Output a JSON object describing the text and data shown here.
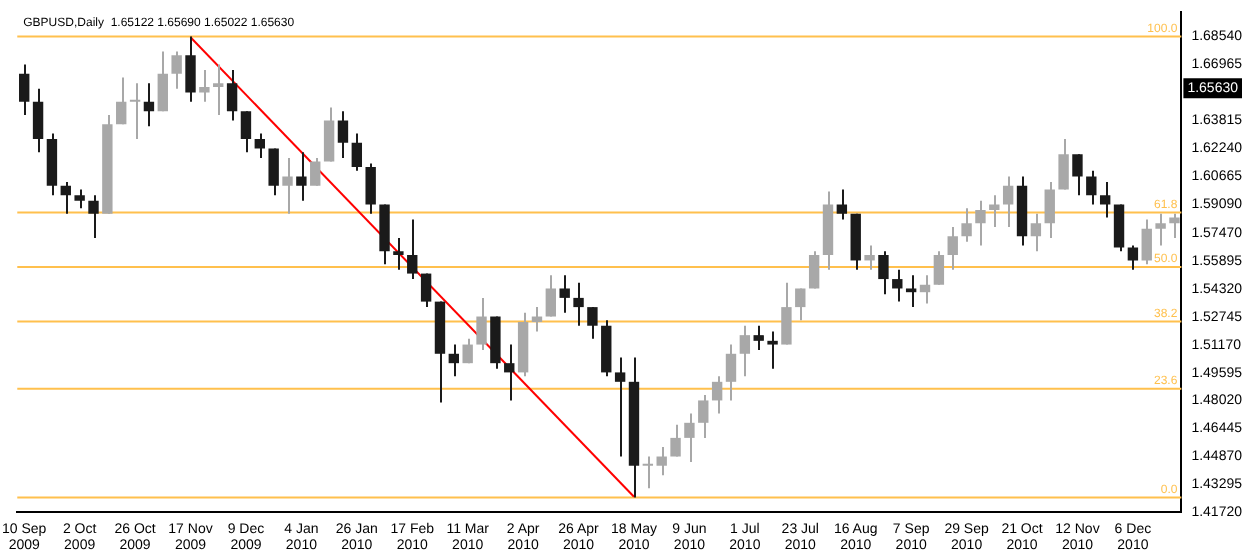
{
  "chart_data": {
    "type": "candlestick",
    "title": "GBPUSD,Daily  1.65122 1.65690 1.65022 1.65630",
    "categories": [
      "10 Sep 2009",
      null,
      null,
      null,
      "2 Oct 2009",
      null,
      null,
      null,
      "26 Oct 2009",
      null,
      null,
      null,
      "17 Nov 2009",
      null,
      null,
      null,
      "9 Dec 2009",
      null,
      null,
      null,
      "4 Jan 2010",
      null,
      null,
      null,
      "26 Jan 2010",
      null,
      null,
      null,
      "17 Feb 2010",
      null,
      null,
      null,
      "11 Mar 2010",
      null,
      null,
      null,
      "2 Apr 2010",
      null,
      null,
      null,
      "26 Apr 2010",
      null,
      null,
      null,
      "18 May 2010",
      null,
      null,
      null,
      "9 Jun 2010",
      null,
      null,
      null,
      "1 Jul 2010",
      null,
      null,
      null,
      "23 Jul 2010",
      null,
      null,
      null,
      "16 Aug 2010",
      null,
      null,
      null,
      "7 Sep 2010",
      null,
      null,
      null,
      "29 Sep 2010",
      null,
      null,
      null,
      "21 Oct 2010",
      null,
      null,
      null,
      "12 Nov 2010",
      null,
      null,
      null,
      "6 Dec 2010",
      null,
      null,
      null
    ],
    "ohlc": [
      [
        1.6644,
        1.6696,
        1.6412,
        1.6486
      ],
      [
        1.6486,
        1.656,
        1.6202,
        1.6276
      ],
      [
        1.6276,
        1.6307,
        1.596,
        1.6013
      ],
      [
        1.6013,
        1.6034,
        1.5855,
        1.596
      ],
      [
        1.596,
        1.5992,
        1.5886,
        1.5928
      ],
      [
        1.5928,
        1.596,
        1.5718,
        1.5855
      ],
      [
        1.5855,
        1.6412,
        1.5855,
        1.636
      ],
      [
        1.636,
        1.6623,
        1.636,
        1.6486
      ],
      [
        1.6486,
        1.6591,
        1.6276,
        1.6486
      ],
      [
        1.6486,
        1.6591,
        1.6349,
        1.6433
      ],
      [
        1.6433,
        1.677,
        1.6433,
        1.6644
      ],
      [
        1.6644,
        1.677,
        1.656,
        1.6749
      ],
      [
        1.6749,
        1.6854,
        1.6486,
        1.6539
      ],
      [
        1.6539,
        1.6665,
        1.6486,
        1.657
      ],
      [
        1.657,
        1.6696,
        1.6412,
        1.6591
      ],
      [
        1.6591,
        1.6665,
        1.6381,
        1.6433
      ],
      [
        1.6433,
        1.6433,
        1.6202,
        1.6276
      ],
      [
        1.6276,
        1.6307,
        1.617,
        1.6223
      ],
      [
        1.6223,
        1.6223,
        1.596,
        1.6013
      ],
      [
        1.6013,
        1.617,
        1.5855,
        1.6065
      ],
      [
        1.6065,
        1.6202,
        1.5928,
        1.6013
      ],
      [
        1.6013,
        1.617,
        1.6013,
        1.6149
      ],
      [
        1.6149,
        1.6454,
        1.6149,
        1.6381
      ],
      [
        1.6381,
        1.6433,
        1.617,
        1.6255
      ],
      [
        1.6255,
        1.6307,
        1.6097,
        1.6118
      ],
      [
        1.6118,
        1.6139,
        1.5855,
        1.5907
      ],
      [
        1.5907,
        1.5907,
        1.5571,
        1.5644
      ],
      [
        1.5644,
        1.5718,
        1.5539,
        1.5623
      ],
      [
        1.5623,
        1.5823,
        1.5487,
        1.5518
      ],
      [
        1.5518,
        1.5518,
        1.5329,
        1.536
      ],
      [
        1.536,
        1.536,
        1.4792,
        1.5066
      ],
      [
        1.5066,
        1.5118,
        1.494,
        1.5013
      ],
      [
        1.5013,
        1.515,
        1.5013,
        1.5118
      ],
      [
        1.5118,
        1.5381,
        1.5087,
        1.5276
      ],
      [
        1.5276,
        1.5276,
        1.4982,
        1.5013
      ],
      [
        1.5013,
        1.5118,
        1.4803,
        1.4961
      ],
      [
        1.4961,
        1.5297,
        1.494,
        1.5245
      ],
      [
        1.5245,
        1.5329,
        1.5192,
        1.5276
      ],
      [
        1.5276,
        1.5508,
        1.5276,
        1.5434
      ],
      [
        1.5434,
        1.5508,
        1.5297,
        1.5381
      ],
      [
        1.5381,
        1.5466,
        1.5224,
        1.5329
      ],
      [
        1.5329,
        1.5329,
        1.515,
        1.5224
      ],
      [
        1.5224,
        1.5255,
        1.494,
        1.4961
      ],
      [
        1.4961,
        1.5045,
        1.4487,
        1.4908
      ],
      [
        1.4908,
        1.5045,
        1.4256,
        1.4435
      ],
      [
        1.4435,
        1.4487,
        1.4308,
        1.4435
      ],
      [
        1.4435,
        1.454,
        1.4382,
        1.4487
      ],
      [
        1.4487,
        1.4666,
        1.4487,
        1.4592
      ],
      [
        1.4592,
        1.4729,
        1.4456,
        1.4677
      ],
      [
        1.4677,
        1.4834,
        1.4592,
        1.4803
      ],
      [
        1.4803,
        1.494,
        1.4729,
        1.4908
      ],
      [
        1.4908,
        1.5118,
        1.4803,
        1.5066
      ],
      [
        1.5066,
        1.5224,
        1.494,
        1.5171
      ],
      [
        1.5171,
        1.5224,
        1.5087,
        1.5139
      ],
      [
        1.5139,
        1.5192,
        1.4982,
        1.5118
      ],
      [
        1.5118,
        1.5466,
        1.5118,
        1.5329
      ],
      [
        1.5329,
        1.5434,
        1.5255,
        1.5434
      ],
      [
        1.5434,
        1.5644,
        1.5434,
        1.5623
      ],
      [
        1.5623,
        1.5981,
        1.5539,
        1.5907
      ],
      [
        1.5907,
        1.5992,
        1.5823,
        1.5855
      ],
      [
        1.5855,
        1.5855,
        1.5539,
        1.5592
      ],
      [
        1.5592,
        1.5676,
        1.5539,
        1.5623
      ],
      [
        1.5623,
        1.5644,
        1.5402,
        1.5487
      ],
      [
        1.5487,
        1.5539,
        1.536,
        1.5434
      ],
      [
        1.5434,
        1.5508,
        1.5329,
        1.5413
      ],
      [
        1.5413,
        1.5508,
        1.535,
        1.5455
      ],
      [
        1.5455,
        1.5644,
        1.5455,
        1.5623
      ],
      [
        1.5623,
        1.5781,
        1.5539,
        1.5729
      ],
      [
        1.5729,
        1.5886,
        1.5697,
        1.5802
      ],
      [
        1.5802,
        1.5928,
        1.5676,
        1.5876
      ],
      [
        1.5876,
        1.596,
        1.5781,
        1.5907
      ],
      [
        1.5907,
        1.6065,
        1.5781,
        1.6013
      ],
      [
        1.6013,
        1.6065,
        1.5676,
        1.5729
      ],
      [
        1.5729,
        1.5855,
        1.5644,
        1.5802
      ],
      [
        1.5802,
        1.6034,
        1.5718,
        1.5992
      ],
      [
        1.5992,
        1.6276,
        1.5992,
        1.6191
      ],
      [
        1.6191,
        1.6191,
        1.596,
        1.6065
      ],
      [
        1.6065,
        1.6097,
        1.5907,
        1.596
      ],
      [
        1.596,
        1.6034,
        1.5834,
        1.5907
      ],
      [
        1.5907,
        1.5907,
        1.5644,
        1.5665
      ],
      [
        1.5665,
        1.5676,
        1.5539,
        1.5592
      ],
      [
        1.5592,
        1.5823,
        1.5571,
        1.5771
      ],
      [
        1.5771,
        1.5855,
        1.5676,
        1.5802
      ],
      [
        1.5802,
        1.5855,
        1.5718,
        1.5834
      ]
    ],
    "series": [
      {
        "type": "line",
        "x": [
          "17 Nov 2009",
          "18 May 2010"
        ],
        "values": [
          1.685,
          1.426
        ],
        "color": "#ff0000"
      }
    ],
    "ylim": [
      1.4172,
      1.699
    ],
    "yticks": [
      {
        "value": 1.6854,
        "label": "1.68540"
      },
      1.66965,
      1.63815,
      {
        "value": 1.6224,
        "label": "1.62240"
      },
      1.60665,
      {
        "value": 1.5909,
        "label": "1.59090"
      },
      {
        "value": 1.5747,
        "label": "1.57470"
      },
      1.55895,
      {
        "value": 1.5432,
        "label": "1.54320"
      },
      1.52745,
      {
        "value": 1.5117,
        "label": "1.51170"
      },
      1.49595,
      {
        "value": 1.4802,
        "label": "1.48020"
      },
      1.46445,
      {
        "value": 1.4487,
        "label": "1.44870"
      },
      1.43295,
      {
        "value": 1.4172,
        "label": "1.41720"
      }
    ],
    "ref_lines": [
      {
        "axis": "y",
        "value": 1.6854,
        "color": "#ffc04d"
      },
      {
        "axis": "y",
        "value": 1.5862,
        "color": "#ffc04d"
      },
      {
        "axis": "y",
        "value": 1.5555,
        "color": "#ffc04d"
      },
      {
        "axis": "y",
        "value": 1.5248,
        "color": "#ffc04d"
      },
      {
        "axis": "y",
        "value": 1.4869,
        "color": "#ffc04d"
      },
      {
        "axis": "y",
        "value": 1.4256,
        "color": "#ffc04d"
      }
    ],
    "annotations": [
      {
        "text": "1.65630",
        "y": 1.6563
      },
      {
        "text": "100.0",
        "y": 1.6854
      },
      {
        "text": "61.8",
        "y": 1.5862
      },
      {
        "text": "50.0",
        "y": 1.5555
      },
      {
        "text": "38.2",
        "y": 1.5248
      },
      {
        "text": "23.6",
        "y": 1.4869
      },
      {
        "text": "0.0",
        "y": 1.4256
      }
    ],
    "grid": false,
    "legend": false
  }
}
